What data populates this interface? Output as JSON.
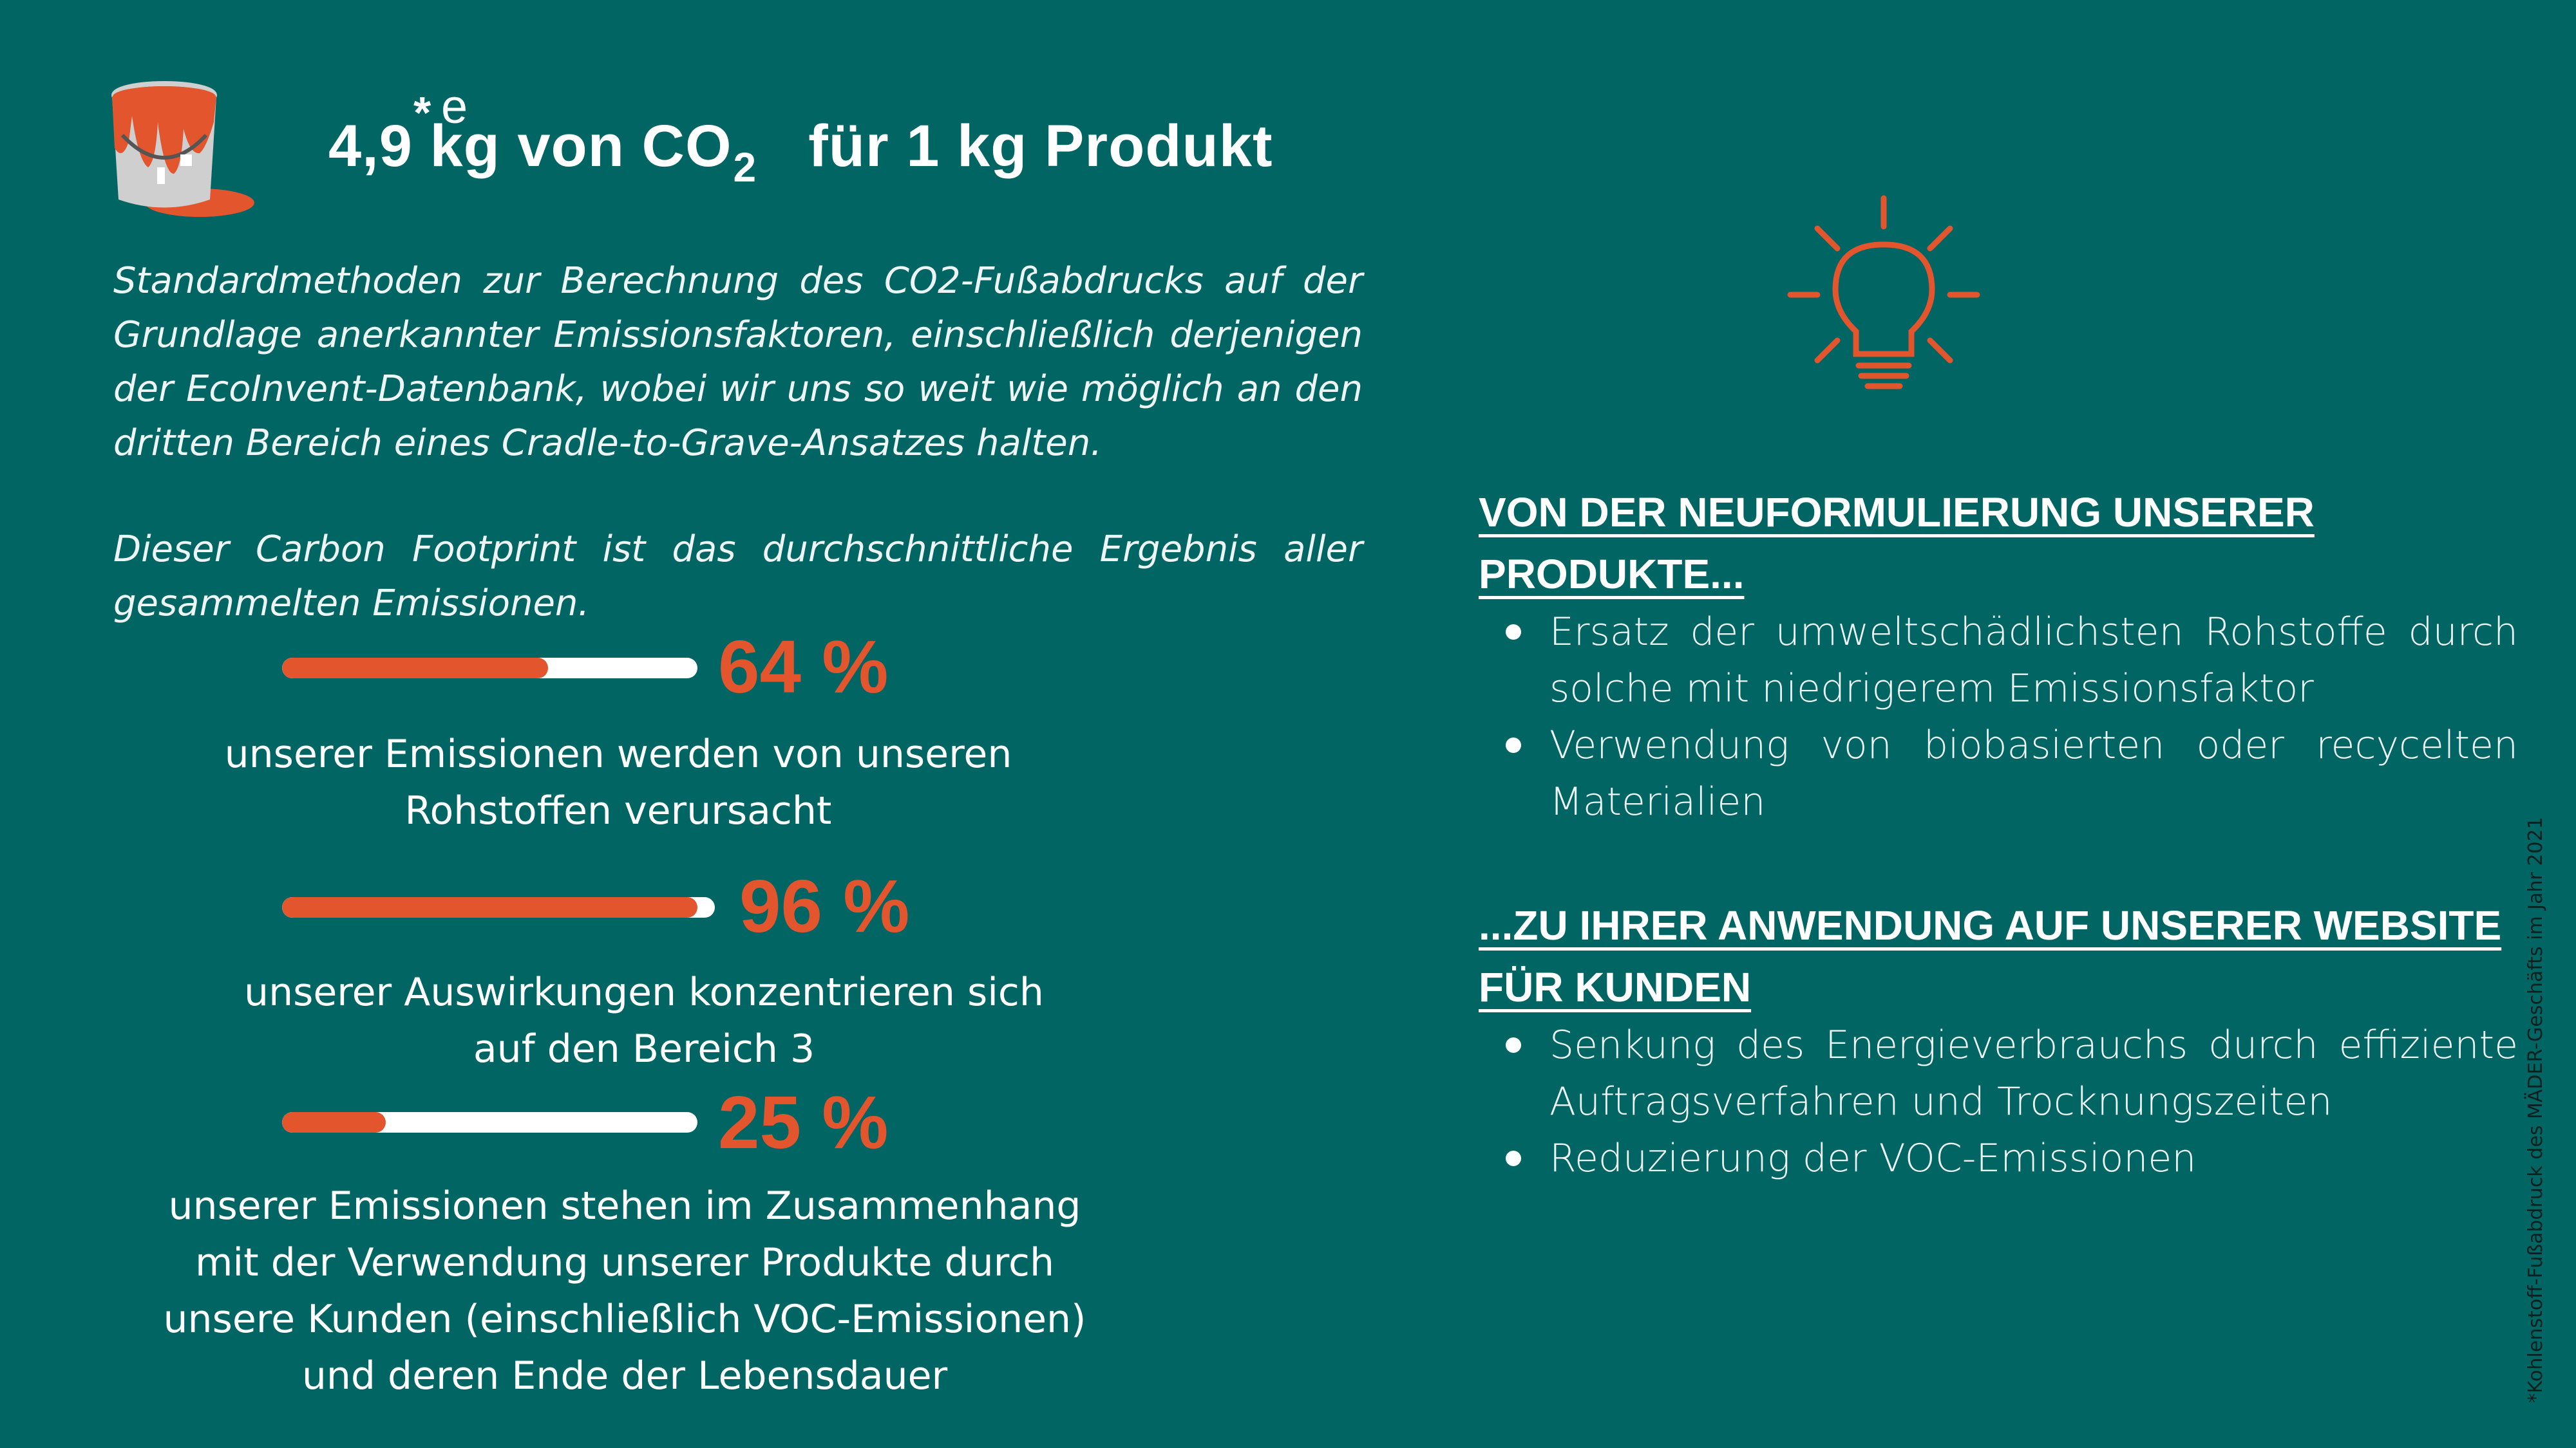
{
  "header": {
    "title_prefix": "4,9 kg von CO",
    "title_subscript": "2",
    "title_star": "*",
    "title_superscript": "e",
    "title_suffix": "für 1 kg Produkt",
    "icon": "paint-bucket-icon"
  },
  "intro": {
    "paragraph1": "Standardmethoden zur Berechnung des CO2-Fußabdrucks auf der Grundlage anerkannter Emissionsfaktoren, einschließlich derjenigen der EcoInvent-Datenbank, wobei wir uns so weit wie möglich an den dritten Bereich eines Cradle-to-Grave-Ansatzes halten.",
    "paragraph2": "Dieser Carbon Footprint ist das durchschnittliche Ergebnis aller gesammelten Emissionen."
  },
  "stats": [
    {
      "percent_label": "64 %",
      "fraction": 0.64,
      "description": "unserer Emissionen werden von unseren Rohstoffen verursacht"
    },
    {
      "percent_label": "96 %",
      "fraction": 0.96,
      "description": "unserer Auswirkungen konzentrieren sich auf den Bereich 3"
    },
    {
      "percent_label": "25 %",
      "fraction": 0.25,
      "description": "unserer Emissionen stehen im Zusammenhang mit der Verwendung unserer Produkte durch unsere Kunden (einschließlich VOC-Emissionen) und deren Ende der Lebensdauer"
    }
  ],
  "right": {
    "icon": "lightbulb-icon",
    "section1": {
      "heading": "VON DER NEUFORMULIERUNG UNSERER PRODUKTE...",
      "items": [
        "Ersatz der umweltschädlichsten Rohstoffe durch solche mit niedrigerem Emissionsfaktor",
        "Verwendung von biobasierten oder recycelten Materialien"
      ]
    },
    "section2": {
      "heading": "...ZU IHRER ANWENDUNG AUF UNSERER WEBSITE FÜR KUNDEN",
      "items": [
        "Senkung des Energieverbrauchs durch effiziente Auftragsverfahren und Trocknungszeiten",
        "Reduzierung der VOC-Emissionen"
      ]
    }
  },
  "footnote": "*Kohlenstoff-Fußabdruck des MÄDER-Geschäfts im Jahr 2021",
  "colors": {
    "background": "#006563",
    "accent": "#e2552d",
    "bar_track": "#ffffff"
  }
}
